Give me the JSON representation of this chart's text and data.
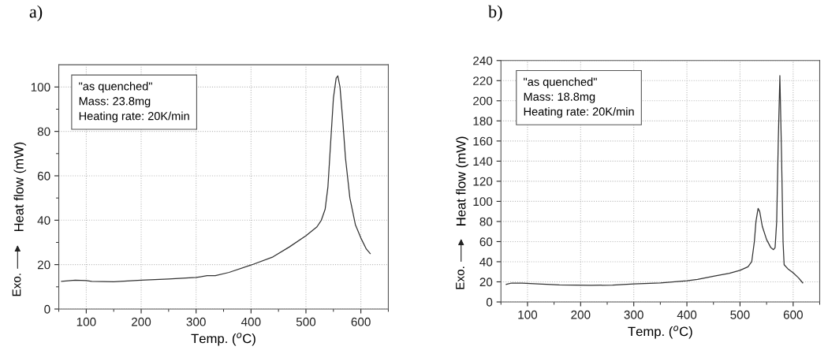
{
  "chart_data": [
    {
      "type": "line",
      "title": "a)",
      "xlabel": "Temp. ($^{o}$C)",
      "ylabel": "Heat flow (mW)",
      "annotations": [
        "\"as quenched\"\nMass: 23.8mg\nHeating rate: 20K/min",
        "Exo."
      ],
      "xlim": [
        50,
        650
      ],
      "xticks": [
        {
          "value": 50,
          "label": null
        },
        100,
        {
          "value": 150,
          "label": null
        },
        200,
        {
          "value": 250,
          "label": null
        },
        300,
        {
          "value": 350,
          "label": null
        },
        400,
        {
          "value": 450,
          "label": null
        },
        500,
        {
          "value": 550,
          "label": null
        },
        600,
        {
          "value": 650,
          "label": null
        }
      ],
      "ylim": [
        0,
        110
      ],
      "yticks": [
        0,
        {
          "value": 10,
          "label": null
        },
        20,
        {
          "value": 30,
          "label": null
        },
        40,
        {
          "value": 50,
          "label": null
        },
        60,
        {
          "value": 70,
          "label": null
        },
        80,
        {
          "value": 90,
          "label": null
        },
        100
      ],
      "grid": true,
      "marker": "none",
      "line_style": "solid",
      "series": [
        {
          "color": "#333333",
          "x": [
            55,
            80,
            100,
            110,
            150,
            200,
            250,
            300,
            320,
            335,
            360,
            400,
            440,
            470,
            500,
            520,
            528,
            535,
            540,
            545,
            550,
            555,
            558,
            562,
            567,
            572,
            580,
            590,
            600,
            610,
            617
          ],
          "values": [
            12.5,
            13,
            12.8,
            12.5,
            12.3,
            13,
            13.5,
            14.2,
            15,
            15,
            16.5,
            19.8,
            23.5,
            28,
            33,
            37,
            40,
            45,
            55,
            75,
            95,
            104,
            105,
            100,
            85,
            68,
            50,
            38,
            32,
            27,
            25
          ]
        }
      ]
    },
    {
      "type": "line",
      "title": "b)",
      "xlabel": "Temp. ($^{o}$C)",
      "ylabel": "Heat flow (mW)",
      "annotations": [
        "\"as quenched\"\nMass: 18.8mg\nHeating rate: 20K/min",
        "Exo."
      ],
      "xlim": [
        50,
        650
      ],
      "xticks": [
        {
          "value": 50,
          "label": null
        },
        100,
        {
          "value": 150,
          "label": null
        },
        200,
        {
          "value": 250,
          "label": null
        },
        300,
        {
          "value": 350,
          "label": null
        },
        400,
        {
          "value": 450,
          "label": null
        },
        500,
        {
          "value": 550,
          "label": null
        },
        600,
        {
          "value": 650,
          "label": null
        }
      ],
      "ylim": [
        0,
        240
      ],
      "yticks": [
        0,
        20,
        40,
        60,
        80,
        100,
        120,
        140,
        160,
        180,
        200,
        220,
        240
      ],
      "grid": true,
      "marker": "none",
      "line_style": "solid",
      "series": [
        {
          "color": "#333333",
          "x": [
            60,
            70,
            90,
            120,
            160,
            220,
            260,
            300,
            350,
            400,
            420,
            450,
            480,
            500,
            515,
            522,
            527,
            530,
            534,
            537,
            542,
            550,
            558,
            563,
            566,
            569,
            572,
            575,
            578,
            581,
            583,
            590,
            600,
            610,
            618
          ],
          "values": [
            17.5,
            18.8,
            18.8,
            18,
            17,
            16.5,
            16.8,
            18,
            19,
            21,
            22.5,
            25.5,
            28.5,
            31.5,
            35,
            40,
            60,
            80,
            93,
            90,
            75,
            62,
            54,
            52,
            54,
            80,
            160,
            225,
            150,
            60,
            37,
            33,
            29,
            24,
            19
          ]
        }
      ]
    }
  ]
}
